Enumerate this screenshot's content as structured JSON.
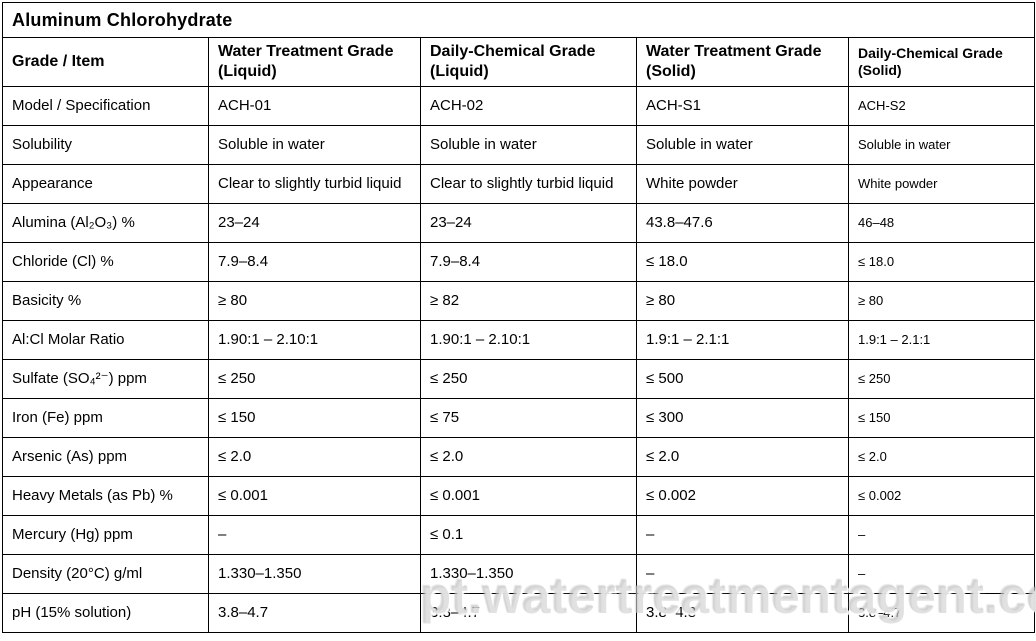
{
  "title": "Aluminum Chlorohydrate",
  "watermark": "pt.watertreatmentagent.com",
  "table": {
    "header": [
      "Grade / Item",
      "Water Treatment Grade (Liquid)",
      "Daily-Chemical Grade (Liquid)",
      "Water Treatment Grade (Solid)",
      "Daily-Chemical Grade (Solid)"
    ],
    "rows": [
      {
        "item": "Model / Specification",
        "values": [
          "ACH-01",
          "ACH-02",
          "ACH-S1",
          "ACH-S2"
        ]
      },
      {
        "item": "Solubility",
        "values": [
          "Soluble in water",
          "Soluble in water",
          "Soluble in water",
          "Soluble in water"
        ]
      },
      {
        "item": "Appearance",
        "values": [
          "Clear to slightly turbid liquid",
          "Clear to slightly turbid liquid",
          "White powder",
          "White powder"
        ]
      },
      {
        "item": "Alumina (Al₂O₃) %",
        "values": [
          "23–24",
          "23–24",
          "43.8–47.6",
          "46–48"
        ]
      },
      {
        "item": "Chloride (Cl) %",
        "values": [
          "7.9–8.4",
          "7.9–8.4",
          "≤ 18.0",
          "≤ 18.0"
        ]
      },
      {
        "item": "Basicity %",
        "values": [
          "≥ 80",
          "≥ 82",
          "≥ 80",
          "≥ 80"
        ]
      },
      {
        "item": "Al:Cl Molar Ratio",
        "values": [
          "1.90:1 – 2.10:1",
          "1.90:1 – 2.10:1",
          "1.9:1 – 2.1:1",
          "1.9:1 – 2.1:1"
        ]
      },
      {
        "item": "Sulfate (SO₄²⁻) ppm",
        "values": [
          "≤ 250",
          "≤ 250",
          "≤ 500",
          "≤ 250"
        ]
      },
      {
        "item": "Iron (Fe) ppm",
        "values": [
          "≤ 150",
          "≤ 75",
          "≤ 300",
          "≤ 150"
        ]
      },
      {
        "item": "Arsenic (As) ppm",
        "values": [
          "≤ 2.0",
          "≤ 2.0",
          "≤ 2.0",
          "≤ 2.0"
        ]
      },
      {
        "item": "Heavy Metals (as Pb) %",
        "values": [
          "≤ 0.001",
          "≤ 0.001",
          "≤ 0.002",
          "≤ 0.002"
        ]
      },
      {
        "item": "Mercury (Hg) ppm",
        "values": [
          "–",
          "≤ 0.1",
          "–",
          "–"
        ]
      },
      {
        "item": "Density (20°C) g/ml",
        "values": [
          "1.330–1.350",
          "1.330–1.350",
          "–",
          "–"
        ]
      },
      {
        "item": "pH (15% solution)",
        "values": [
          "3.8–4.7",
          "3.8–4.7",
          "3.8–4.8",
          "3.8–4.7"
        ]
      }
    ]
  }
}
